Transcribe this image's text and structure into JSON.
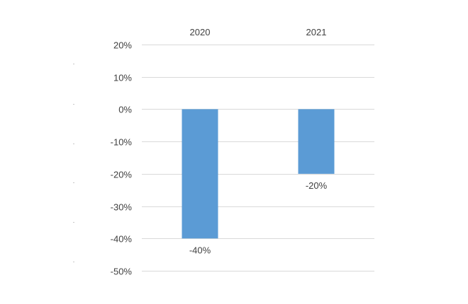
{
  "chart_data": {
    "type": "bar",
    "categories": [
      "2020",
      "2021"
    ],
    "values": [
      -40,
      -20
    ],
    "data_labels": [
      "-40%",
      "-20%"
    ],
    "title": "",
    "xlabel": "",
    "ylabel": "",
    "ylim": [
      -50,
      20
    ],
    "yticks": [
      20,
      10,
      0,
      -10,
      -20,
      -30,
      -40,
      -50
    ],
    "ytick_labels": [
      "20%",
      "10%",
      "0%",
      "-10%",
      "-20%",
      "-30%",
      "-40%",
      "-50%"
    ],
    "category_axis_position": "top",
    "grid": true,
    "legend": "none",
    "bar_color": "#5b9bd5",
    "grid_color": "#d9d9d9",
    "text_color": "#404040"
  }
}
